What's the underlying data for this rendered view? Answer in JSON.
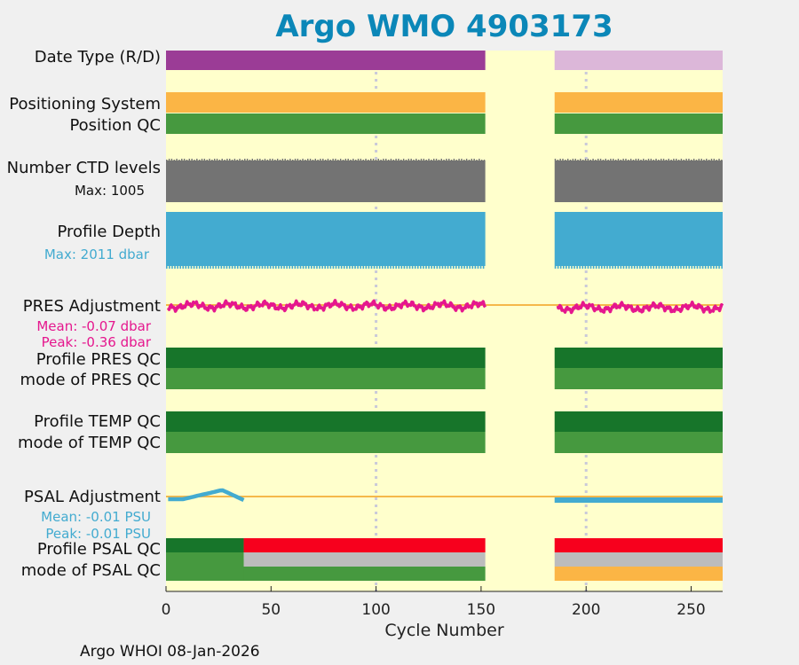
{
  "title": "Argo WMO 4903173",
  "footer": "Argo WHOI 08-Jan-2026",
  "colors": {
    "background": "#ffffcc",
    "figure_bg": "#f0f0f0",
    "title": "#0b87b8",
    "purple": "#9b3c96",
    "lavender": "#dcb7d9",
    "orange": "#fbb545",
    "green": "#46993f",
    "dark_green": "#17752a",
    "gray": "#737373",
    "light_gray": "#bcbcbc",
    "blue": "#43abd0",
    "magenta": "#e5178e",
    "red": "#f7001d",
    "ref_line": "#f5b84a",
    "grid": "#c9c9d9"
  },
  "chart_data": {
    "type": "timeline",
    "xlabel": "Cycle Number",
    "xlim": [
      0,
      265
    ],
    "xticks": [
      0,
      50,
      100,
      150,
      200,
      250
    ],
    "gridlines_x": [
      100,
      200
    ],
    "segments": [
      [
        0,
        152
      ],
      [
        185,
        265
      ]
    ],
    "rows": [
      {
        "label": "Date Type (R/D)",
        "colors": [
          "purple",
          "lavender"
        ]
      },
      {
        "label": "Positioning System",
        "colors": [
          "orange",
          "orange"
        ]
      },
      {
        "label": "Position QC",
        "colors": [
          "green",
          "green"
        ]
      },
      {
        "label": "Number CTD levels",
        "sublabel": "Max: 1005",
        "color": "gray",
        "max": 1005
      },
      {
        "label": "Profile Depth",
        "sublabel": "Max: 2011 dbar",
        "color": "blue",
        "max_dbar": 2011
      },
      {
        "label": "PRES Adjustment",
        "mean_label": "Mean: -0.07 dbar",
        "peak_label": "Peak: -0.36 dbar",
        "mean": -0.07,
        "peak": -0.36,
        "color": "magenta"
      },
      {
        "label": "Profile PRES QC",
        "colors": [
          "dark_green",
          "dark_green"
        ]
      },
      {
        "label": "mode of PRES QC",
        "colors": [
          "green",
          "green"
        ]
      },
      {
        "label": "Profile TEMP QC",
        "colors": [
          "dark_green",
          "dark_green"
        ]
      },
      {
        "label": "mode of TEMP QC",
        "colors": [
          "green",
          "green"
        ]
      },
      {
        "label": "PSAL Adjustment",
        "mean_label": "Mean: -0.01 PSU",
        "peak_label": "Peak: -0.01 PSU",
        "mean": -0.01,
        "peak": -0.01,
        "color": "blue",
        "trace_cycles": [
          [
            1,
            37
          ],
          [
            185,
            265
          ]
        ]
      },
      {
        "label": "Profile PSAL QC",
        "pieces": [
          [
            0,
            37,
            "dark_green"
          ],
          [
            37,
            152,
            "red"
          ],
          [
            185,
            265,
            "red"
          ]
        ]
      },
      {
        "label": "mode of PSAL QC",
        "pieces": [
          [
            0,
            37,
            "green"
          ],
          [
            37,
            152,
            "light_gray"
          ],
          [
            185,
            265,
            "light_gray"
          ]
        ],
        "lower": [
          [
            0,
            152,
            "green"
          ],
          [
            185,
            265,
            "orange"
          ]
        ]
      }
    ]
  }
}
